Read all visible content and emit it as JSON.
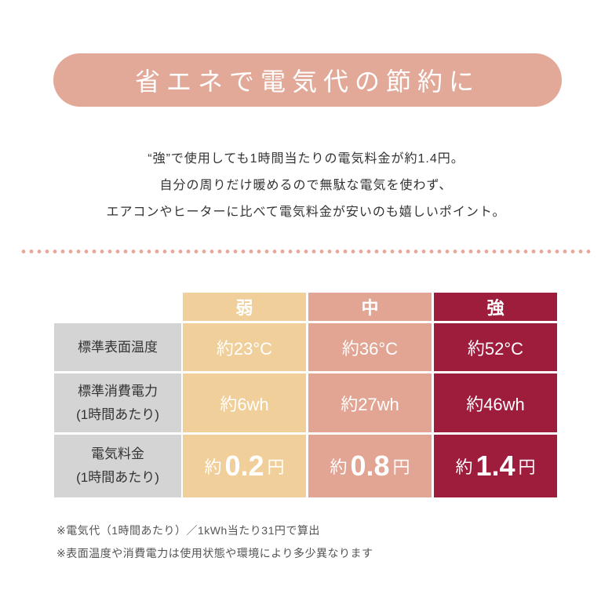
{
  "header": {
    "title": "省エネで電気代の節約に"
  },
  "intro": [
    "“強”で使用しても1時間当たりの電気料金が約1.4円。",
    "自分の周りだけ暖めるので無駄な電気を使わず、",
    "エアコンやヒーターに比べて電気料金が安いのも嬉しいポイント。"
  ],
  "table": {
    "columns": [
      "弱",
      "中",
      "強"
    ],
    "rows": [
      {
        "label": [
          "標準表面温度"
        ],
        "cells": [
          "約23°C",
          "約36°C",
          "約52°C"
        ]
      },
      {
        "label": [
          "標準消費電力",
          "(1時間あたり)"
        ],
        "cells": [
          "約6wh",
          "約27wh",
          "約46wh"
        ]
      },
      {
        "label": [
          "電気料金",
          "(1時間あたり)"
        ],
        "cells": [
          {
            "prefix": "約",
            "value": "0.2",
            "suffix": "円"
          },
          {
            "prefix": "約",
            "value": "0.8",
            "suffix": "円"
          },
          {
            "prefix": "約",
            "value": "1.4",
            "suffix": "円"
          }
        ]
      }
    ]
  },
  "notes": [
    "※電気代（1時間あたり）／1kWh当たり31円で算出",
    "※表面温度や消費電力は使用状態や環境により多少異なります"
  ]
}
